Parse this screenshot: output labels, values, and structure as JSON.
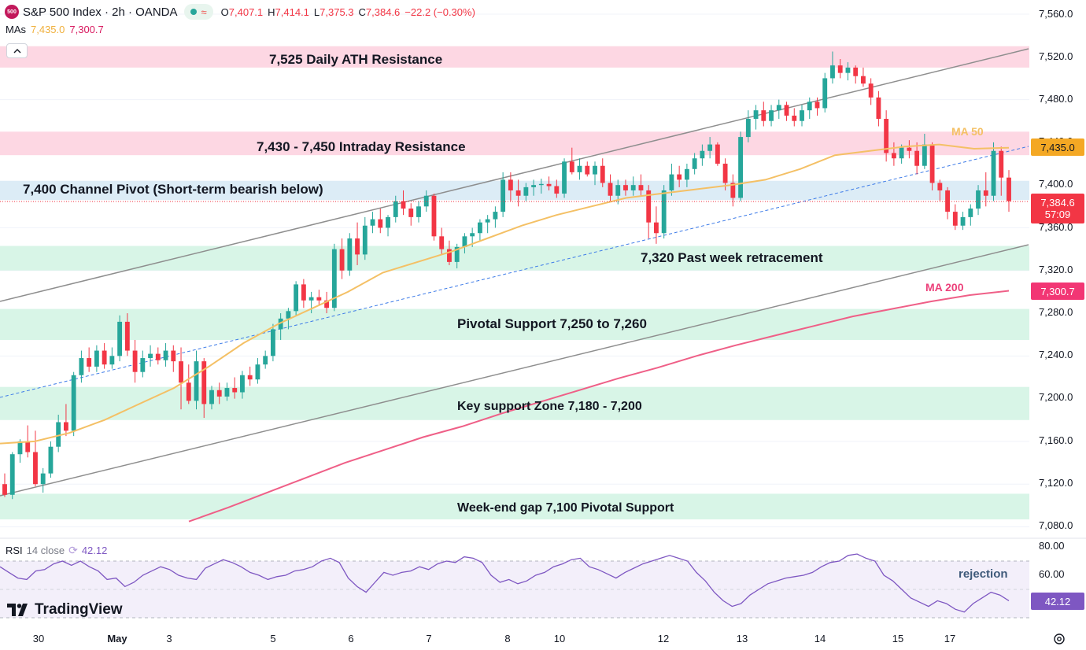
{
  "header": {
    "symbol_badge": "500",
    "title": "S&P 500 Index · 2h · OANDA",
    "open_label": "O",
    "open": "7,407.1",
    "high_label": "H",
    "high": "7,414.1",
    "low_label": "L",
    "low": "7,375.3",
    "close_label": "C",
    "close": "7,384.6",
    "change": "−22.2 (−0.30%)"
  },
  "mas": {
    "label": "MAs",
    "ma50_value": "7,435.0",
    "ma200_value": "7,300.7"
  },
  "zones": [
    {
      "label": "7,525 Daily ATH Resistance",
      "from": 7510,
      "to": 7530,
      "kind": "resistance"
    },
    {
      "label": "7,430 - 7,450 Intraday Resistance",
      "from": 7428,
      "to": 7450,
      "kind": "resistance"
    },
    {
      "label": "7,400 Channel Pivot (Short-term bearish below)",
      "from": 7386,
      "to": 7404,
      "kind": "pivot"
    },
    {
      "label": "7,320 Past week retracement",
      "from": 7320,
      "to": 7343,
      "kind": "support"
    },
    {
      "label": "Pivotal Support 7,250 to 7,260",
      "from": 7255,
      "to": 7284,
      "kind": "support"
    },
    {
      "label": "Key support Zone 7,180 - 7,200",
      "from": 7180,
      "to": 7211,
      "kind": "support"
    },
    {
      "label": "Week-end gap 7,100 Pivotal Support",
      "from": 7087,
      "to": 7111,
      "kind": "support"
    }
  ],
  "ma_tags": {
    "ma50": "MA 50",
    "ma200": "MA 200"
  },
  "price_axis": {
    "ticks": [
      "7,560.0",
      "7,520.0",
      "7,480.0",
      "7,440.0",
      "7,400.0",
      "7,360.0",
      "7,320.0",
      "7,280.0",
      "7,240.0",
      "7,200.0",
      "7,160.0",
      "7,120.0",
      "7,080.0"
    ],
    "ma50_label": "7,435.0",
    "last_price": "7,384.6",
    "countdown": "57:09",
    "ma200_label": "7,300.7"
  },
  "rsi": {
    "name": "RSI",
    "params": "14 close",
    "value": "42.12",
    "ticks": [
      "80.00",
      "60.00"
    ],
    "label_value": "42.12",
    "annotation": "rejection",
    "upper_band": 70,
    "lower_band": 30,
    "mid": 50
  },
  "time_axis": {
    "ticks": [
      {
        "label": "30",
        "bold": false
      },
      {
        "label": "May",
        "bold": true
      },
      {
        "label": "3",
        "bold": false
      },
      {
        "label": "5",
        "bold": false
      },
      {
        "label": "6",
        "bold": false
      },
      {
        "label": "7",
        "bold": false
      },
      {
        "label": "8",
        "bold": false
      },
      {
        "label": "10",
        "bold": false
      },
      {
        "label": "12",
        "bold": false
      },
      {
        "label": "13",
        "bold": false
      },
      {
        "label": "14",
        "bold": false
      },
      {
        "label": "15",
        "bold": false
      },
      {
        "label": "17",
        "bold": false
      }
    ]
  },
  "branding": {
    "logo_text": "TradingView"
  },
  "colors": {
    "up": "#26a69a",
    "down": "#f23645",
    "ma50": "#f4c065",
    "ma200": "#ef5f87",
    "resistance_zone": "#fdd7e3",
    "pivot_zone": "#dcecf6",
    "support_zone": "#d8f5e7",
    "channel": "#8e8e8e",
    "rsi_line": "#7e57c2"
  },
  "chart_data": {
    "type": "candlestick",
    "ohlc": [
      [
        7120,
        7130,
        7108,
        7110
      ],
      [
        7110,
        7150,
        7106,
        7148
      ],
      [
        7148,
        7162,
        7140,
        7160
      ],
      [
        7160,
        7175,
        7145,
        7150
      ],
      [
        7150,
        7170,
        7118,
        7120
      ],
      [
        7120,
        7135,
        7112,
        7130
      ],
      [
        7130,
        7160,
        7126,
        7155
      ],
      [
        7155,
        7185,
        7150,
        7178
      ],
      [
        7178,
        7195,
        7165,
        7170
      ],
      [
        7170,
        7225,
        7165,
        7222
      ],
      [
        7222,
        7245,
        7215,
        7238
      ],
      [
        7238,
        7248,
        7225,
        7230
      ],
      [
        7230,
        7250,
        7225,
        7245
      ],
      [
        7245,
        7252,
        7228,
        7232
      ],
      [
        7232,
        7248,
        7228,
        7240
      ],
      [
        7240,
        7278,
        7235,
        7272
      ],
      [
        7272,
        7280,
        7240,
        7245
      ],
      [
        7245,
        7255,
        7215,
        7225
      ],
      [
        7225,
        7245,
        7220,
        7238
      ],
      [
        7238,
        7250,
        7230,
        7242
      ],
      [
        7242,
        7248,
        7232,
        7236
      ],
      [
        7236,
        7252,
        7230,
        7245
      ],
      [
        7245,
        7250,
        7225,
        7235
      ],
      [
        7235,
        7248,
        7190,
        7215
      ],
      [
        7215,
        7232,
        7195,
        7198
      ],
      [
        7198,
        7245,
        7190,
        7235
      ],
      [
        7235,
        7238,
        7182,
        7195
      ],
      [
        7195,
        7212,
        7190,
        7208
      ],
      [
        7208,
        7215,
        7195,
        7202
      ],
      [
        7202,
        7215,
        7198,
        7210
      ],
      [
        7210,
        7220,
        7200,
        7206
      ],
      [
        7206,
        7226,
        7200,
        7222
      ],
      [
        7222,
        7230,
        7212,
        7218
      ],
      [
        7218,
        7238,
        7214,
        7232
      ],
      [
        7232,
        7245,
        7228,
        7240
      ],
      [
        7240,
        7270,
        7235,
        7265
      ],
      [
        7265,
        7280,
        7255,
        7275
      ],
      [
        7275,
        7285,
        7265,
        7282
      ],
      [
        7282,
        7310,
        7278,
        7307
      ],
      [
        7307,
        7312,
        7285,
        7292
      ],
      [
        7292,
        7300,
        7280,
        7295
      ],
      [
        7295,
        7302,
        7288,
        7292
      ],
      [
        7292,
        7300,
        7280,
        7285
      ],
      [
        7285,
        7345,
        7282,
        7340
      ],
      [
        7340,
        7350,
        7312,
        7320
      ],
      [
        7320,
        7355,
        7315,
        7350
      ],
      [
        7350,
        7365,
        7325,
        7335
      ],
      [
        7335,
        7370,
        7330,
        7362
      ],
      [
        7362,
        7375,
        7355,
        7368
      ],
      [
        7368,
        7378,
        7355,
        7360
      ],
      [
        7360,
        7372,
        7352,
        7370
      ],
      [
        7370,
        7390,
        7365,
        7385
      ],
      [
        7385,
        7395,
        7372,
        7378
      ],
      [
        7378,
        7383,
        7362,
        7370
      ],
      [
        7370,
        7385,
        7365,
        7380
      ],
      [
        7380,
        7395,
        7375,
        7390
      ],
      [
        7390,
        7392,
        7348,
        7352
      ],
      [
        7352,
        7360,
        7335,
        7340
      ],
      [
        7340,
        7348,
        7325,
        7328
      ],
      [
        7328,
        7345,
        7322,
        7342
      ],
      [
        7342,
        7355,
        7336,
        7352
      ],
      [
        7352,
        7360,
        7342,
        7355
      ],
      [
        7355,
        7368,
        7348,
        7365
      ],
      [
        7365,
        7372,
        7355,
        7368
      ],
      [
        7368,
        7380,
        7360,
        7375
      ],
      [
        7375,
        7412,
        7370,
        7405
      ],
      [
        7405,
        7412,
        7385,
        7395
      ],
      [
        7395,
        7405,
        7380,
        7390
      ],
      [
        7390,
        7402,
        7385,
        7398
      ],
      [
        7398,
        7405,
        7390,
        7400
      ],
      [
        7400,
        7406,
        7392,
        7401
      ],
      [
        7401,
        7408,
        7395,
        7399
      ],
      [
        7399,
        7405,
        7388,
        7392
      ],
      [
        7392,
        7425,
        7388,
        7422
      ],
      [
        7422,
        7435,
        7410,
        7412
      ],
      [
        7412,
        7425,
        7405,
        7418
      ],
      [
        7418,
        7422,
        7408,
        7410
      ],
      [
        7410,
        7422,
        7400,
        7418
      ],
      [
        7418,
        7425,
        7398,
        7402
      ],
      [
        7402,
        7410,
        7385,
        7390
      ],
      [
        7390,
        7405,
        7382,
        7400
      ],
      [
        7400,
        7405,
        7390,
        7395
      ],
      [
        7395,
        7408,
        7390,
        7400
      ],
      [
        7400,
        7410,
        7390,
        7395
      ],
      [
        7395,
        7400,
        7350,
        7365
      ],
      [
        7365,
        7380,
        7345,
        7355
      ],
      [
        7355,
        7400,
        7350,
        7395
      ],
      [
        7395,
        7420,
        7390,
        7410
      ],
      [
        7410,
        7418,
        7398,
        7405
      ],
      [
        7405,
        7420,
        7398,
        7415
      ],
      [
        7415,
        7430,
        7410,
        7425
      ],
      [
        7425,
        7438,
        7418,
        7432
      ],
      [
        7432,
        7445,
        7425,
        7438
      ],
      [
        7438,
        7440,
        7418,
        7420
      ],
      [
        7420,
        7425,
        7395,
        7402
      ],
      [
        7402,
        7410,
        7380,
        7388
      ],
      [
        7388,
        7450,
        7385,
        7445
      ],
      [
        7445,
        7470,
        7440,
        7462
      ],
      [
        7462,
        7475,
        7452,
        7470
      ],
      [
        7470,
        7478,
        7455,
        7460
      ],
      [
        7460,
        7475,
        7455,
        7470
      ],
      [
        7470,
        7480,
        7462,
        7475
      ],
      [
        7475,
        7478,
        7460,
        7465
      ],
      [
        7465,
        7472,
        7455,
        7460
      ],
      [
        7460,
        7475,
        7455,
        7470
      ],
      [
        7470,
        7482,
        7462,
        7478
      ],
      [
        7478,
        7482,
        7465,
        7472
      ],
      [
        7472,
        7505,
        7468,
        7500
      ],
      [
        7500,
        7525,
        7495,
        7512
      ],
      [
        7512,
        7518,
        7500,
        7505
      ],
      [
        7505,
        7515,
        7498,
        7510
      ],
      [
        7510,
        7512,
        7495,
        7502
      ],
      [
        7502,
        7510,
        7492,
        7495
      ],
      [
        7495,
        7500,
        7475,
        7482
      ],
      [
        7482,
        7488,
        7455,
        7462
      ],
      [
        7462,
        7470,
        7422,
        7430
      ],
      [
        7430,
        7440,
        7418,
        7425
      ],
      [
        7425,
        7438,
        7420,
        7435
      ],
      [
        7435,
        7442,
        7425,
        7432
      ],
      [
        7432,
        7440,
        7410,
        7418
      ],
      [
        7418,
        7448,
        7415,
        7438
      ],
      [
        7438,
        7440,
        7395,
        7402
      ],
      [
        7402,
        7405,
        7385,
        7395
      ],
      [
        7395,
        7398,
        7368,
        7375
      ],
      [
        7375,
        7382,
        7358,
        7362
      ],
      [
        7362,
        7375,
        7358,
        7370
      ],
      [
        7370,
        7382,
        7362,
        7378
      ],
      [
        7378,
        7400,
        7372,
        7395
      ],
      [
        7395,
        7412,
        7380,
        7390
      ],
      [
        7390,
        7440,
        7385,
        7432
      ],
      [
        7432,
        7436,
        7390,
        7407
      ],
      [
        7407,
        7414,
        7375,
        7385
      ]
    ],
    "ma50": [
      7158,
      7160,
      7168,
      7180,
      7195,
      7210,
      7230,
      7252,
      7270,
      7285,
      7300,
      7318,
      7328,
      7338,
      7350,
      7362,
      7372,
      7380,
      7388,
      7392,
      7396,
      7400,
      7405,
      7415,
      7428,
      7432,
      7436,
      7438,
      7434,
      7435
    ],
    "ma200": [
      7085,
      7098,
      7112,
      7126,
      7140,
      7152,
      7164,
      7174,
      7186,
      7197,
      7208,
      7219,
      7229,
      7240,
      7250,
      7259,
      7268,
      7277,
      7284,
      7291,
      7297,
      7301
    ],
    "rsi": [
      66,
      62,
      58,
      57,
      63,
      64,
      68,
      70,
      67,
      70,
      66,
      63,
      57,
      58,
      52,
      55,
      60,
      63,
      66,
      64,
      60,
      58,
      57,
      65,
      68,
      71,
      69,
      66,
      62,
      60,
      57,
      59,
      60,
      63,
      64,
      66,
      70,
      72,
      69,
      58,
      52,
      48,
      55,
      62,
      60,
      62,
      63,
      66,
      64,
      68,
      70,
      69,
      73,
      72,
      69,
      60,
      55,
      57,
      54,
      56,
      60,
      62,
      66,
      68,
      71,
      72,
      66,
      64,
      61,
      58,
      62,
      65,
      68,
      70,
      72,
      74,
      72,
      70,
      62,
      56,
      48,
      42,
      38,
      40,
      46,
      50,
      54,
      56,
      58,
      59,
      60,
      62,
      66,
      69,
      70,
      74,
      75,
      72,
      70,
      60,
      56,
      50,
      44,
      41,
      38,
      42,
      40,
      36,
      34,
      40,
      44,
      48,
      46,
      42
    ]
  }
}
